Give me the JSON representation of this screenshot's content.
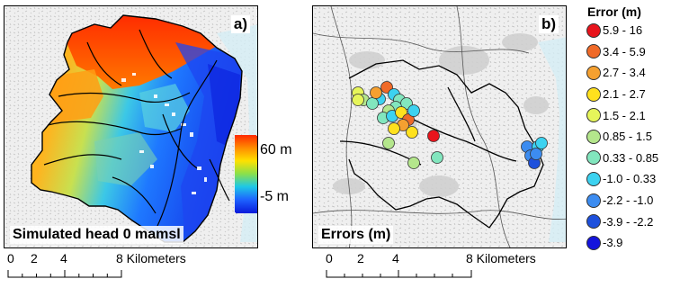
{
  "panel_a": {
    "letter": "a)",
    "caption": "Simulated head 0 mamsl",
    "colorbar": {
      "max_label": "60 m",
      "min_label": "-5 m",
      "colors": [
        "#ff2a00",
        "#ff8c00",
        "#ffe100",
        "#8be04a",
        "#1ec8e6",
        "#1e64ff",
        "#0a1edc"
      ]
    }
  },
  "panel_b": {
    "letter": "b)",
    "caption": "Errors (m)"
  },
  "scalebar_a": {
    "ticks": [
      "0",
      "2",
      "4",
      "8 Kilometers"
    ]
  },
  "scalebar_b": {
    "ticks": [
      "0",
      "2",
      "4",
      "8 Kilometers"
    ]
  },
  "legend": {
    "title": "Error (m)",
    "items": [
      {
        "label": "5.9 - 16",
        "color": "#e8141c"
      },
      {
        "label": "3.4 - 5.9",
        "color": "#f06a28"
      },
      {
        "label": "2.7 - 3.4",
        "color": "#f5a030"
      },
      {
        "label": "2.1 - 2.7",
        "color": "#ffe11e"
      },
      {
        "label": "1.5 - 2.1",
        "color": "#e6f55a"
      },
      {
        "label": "0.85 - 1.5",
        "color": "#b4e68c"
      },
      {
        "label": "0.33 - 0.85",
        "color": "#82e6be"
      },
      {
        "label": "-1.0 - 0.33",
        "color": "#3cd2f0"
      },
      {
        "label": "-2.2 - -1.0",
        "color": "#3c8cf0"
      },
      {
        "label": "-3.9 - -2.2",
        "color": "#1e50dc"
      },
      {
        "label": "-3.9",
        "color": "#1414dc"
      }
    ]
  }
}
